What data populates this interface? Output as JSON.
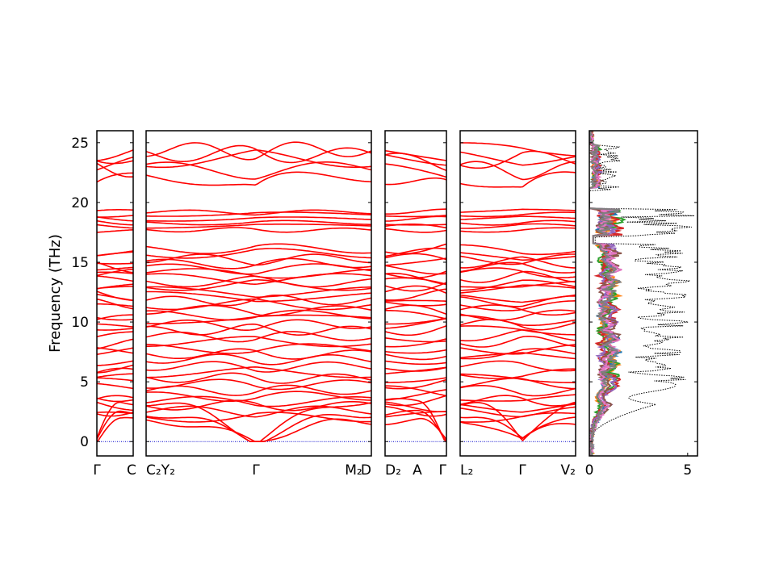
{
  "chart_data": {
    "type": "line",
    "ylabel": "Frequency (THz)",
    "ylim": [
      -1.2,
      26
    ],
    "yticks": [
      0,
      5,
      10,
      15,
      20,
      25
    ],
    "band_color": "#ff0000",
    "zero_line_color": "#0000cc",
    "panels": [
      {
        "labels": [
          "Γ",
          "C"
        ]
      },
      {
        "labels": [
          "C₂Y₂",
          "Γ",
          "M₂",
          "D"
        ]
      },
      {
        "labels": [
          "D₂",
          "A",
          "Γ"
        ]
      },
      {
        "labels": [
          "L₂",
          "Γ",
          "V₂"
        ]
      }
    ],
    "dos": {
      "xlim": [
        0,
        5.5
      ],
      "xticks": [
        "0",
        "5"
      ],
      "total_color": "#000000",
      "projection_colors": [
        "#1f77b4",
        "#ff7f0e",
        "#2ca02c",
        "#d62728",
        "#9467bd",
        "#8c564b",
        "#e377c2",
        "#7f7f7f"
      ]
    }
  }
}
